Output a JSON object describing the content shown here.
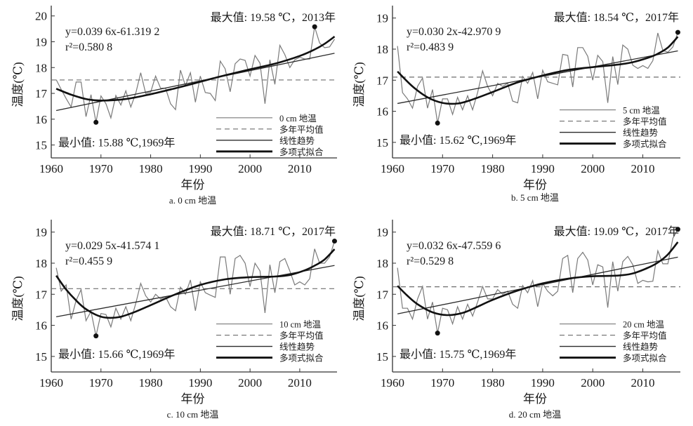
{
  "chart_data": [
    {
      "id": "a",
      "type": "line",
      "caption": "a. 0 cm 地温",
      "xlabel": "年份",
      "ylabel": "温度(℃)",
      "xlim": [
        1960,
        2017.5
      ],
      "ylim": [
        14.5,
        20.4
      ],
      "xticks": [
        1960,
        1970,
        1980,
        1990,
        2000,
        2010
      ],
      "yticks": [
        15,
        16,
        17,
        18,
        19,
        20
      ],
      "grid": false,
      "legend": {
        "position": "bottom-right",
        "entries": [
          "0 cm 地温",
          "多年平均值",
          "线性趋势",
          "多项式拟合"
        ]
      },
      "equation": "y=0.039 6x-61.319 2",
      "r2": "r²=0.580 8",
      "max_label": "最大值: 19.58 ℃，2013年",
      "min_label": "最小值: 15.88 ℃,1969年",
      "max_point": {
        "year": 2013,
        "value": 19.58
      },
      "min_point": {
        "year": 1969,
        "value": 15.88
      },
      "mean": 17.52,
      "linear_trend": {
        "slope": 0.0396,
        "intercept": -61.3192
      },
      "poly_fit": [
        [
          1961,
          17.18
        ],
        [
          1964,
          16.95
        ],
        [
          1967,
          16.78
        ],
        [
          1970,
          16.72
        ],
        [
          1975,
          16.78
        ],
        [
          1980,
          16.97
        ],
        [
          1985,
          17.2
        ],
        [
          1990,
          17.45
        ],
        [
          1995,
          17.7
        ],
        [
          2000,
          17.93
        ],
        [
          2005,
          18.15
        ],
        [
          2010,
          18.45
        ],
        [
          2013,
          18.7
        ],
        [
          2015,
          18.92
        ],
        [
          2017,
          19.2
        ]
      ],
      "series": [
        {
          "name": "0 cm 地温",
          "x": [
            1961,
            1962,
            1963,
            1964,
            1965,
            1966,
            1967,
            1968,
            1969,
            1970,
            1971,
            1972,
            1973,
            1974,
            1975,
            1976,
            1977,
            1978,
            1979,
            1980,
            1981,
            1982,
            1983,
            1984,
            1985,
            1986,
            1987,
            1988,
            1989,
            1990,
            1991,
            1992,
            1993,
            1994,
            1995,
            1996,
            1997,
            1998,
            1999,
            2000,
            2001,
            2002,
            2003,
            2004,
            2005,
            2006,
            2007,
            2008,
            2009,
            2010,
            2011,
            2012,
            2013,
            2014,
            2015,
            2016,
            2017
          ],
          "values": [
            17.53,
            17.15,
            16.8,
            16.47,
            17.44,
            17.44,
            16.1,
            16.95,
            15.88,
            16.9,
            16.6,
            16.05,
            16.92,
            16.55,
            17.1,
            16.47,
            17.0,
            17.8,
            17.0,
            17.05,
            17.67,
            17.2,
            17.2,
            16.6,
            16.37,
            17.9,
            17.3,
            17.8,
            16.66,
            17.67,
            17.03,
            17.0,
            16.72,
            18.25,
            17.95,
            17.06,
            18.15,
            18.33,
            18.28,
            17.67,
            18.47,
            18.17,
            16.6,
            18.3,
            17.35,
            18.86,
            18.5,
            18.0,
            18.3,
            18.4,
            18.33,
            18.33,
            19.58,
            18.95,
            18.77,
            18.8,
            19.1
          ]
        }
      ]
    },
    {
      "id": "b",
      "type": "line",
      "caption": "b. 5 cm 地温",
      "xlabel": "年份",
      "ylabel": "温度(℃)",
      "xlim": [
        1960,
        2017.5
      ],
      "ylim": [
        14.5,
        19.4
      ],
      "xticks": [
        1960,
        1970,
        1980,
        1990,
        2000,
        2010
      ],
      "yticks": [
        15,
        16,
        17,
        18,
        19
      ],
      "grid": false,
      "legend": {
        "position": "bottom-right",
        "entries": [
          "5 cm 地温",
          "多年平均值",
          "线性趋势",
          "多项式拟合"
        ]
      },
      "equation": "y=0.030 2x-42.970 9",
      "r2": "r²=0.483 9",
      "max_label": "最大值: 18.54 ℃，2017年",
      "min_label": "最小值: 15.62 ℃,1969年",
      "max_point": {
        "year": 2017,
        "value": 18.54
      },
      "min_point": {
        "year": 1969,
        "value": 15.62
      },
      "mean": 17.1,
      "linear_trend": {
        "slope": 0.0302,
        "intercept": -42.9709
      },
      "poly_fit": [
        [
          1961,
          17.28
        ],
        [
          1964,
          16.8
        ],
        [
          1967,
          16.45
        ],
        [
          1970,
          16.27
        ],
        [
          1973,
          16.25
        ],
        [
          1976,
          16.38
        ],
        [
          1980,
          16.62
        ],
        [
          1985,
          16.93
        ],
        [
          1990,
          17.15
        ],
        [
          1995,
          17.33
        ],
        [
          2000,
          17.42
        ],
        [
          2005,
          17.5
        ],
        [
          2008,
          17.58
        ],
        [
          2011,
          17.72
        ],
        [
          2013,
          17.85
        ],
        [
          2015,
          18.05
        ],
        [
          2017,
          18.4
        ]
      ],
      "series": [
        {
          "name": "5 cm 地温",
          "x": [
            1961,
            1962,
            1963,
            1964,
            1965,
            1966,
            1967,
            1968,
            1969,
            1970,
            1971,
            1972,
            1973,
            1974,
            1975,
            1976,
            1977,
            1978,
            1979,
            1980,
            1981,
            1982,
            1983,
            1984,
            1985,
            1986,
            1987,
            1988,
            1989,
            1990,
            1991,
            1992,
            1993,
            1994,
            1995,
            1996,
            1997,
            1998,
            1999,
            2000,
            2001,
            2002,
            2003,
            2004,
            2005,
            2006,
            2007,
            2008,
            2009,
            2010,
            2011,
            2012,
            2013,
            2014,
            2015,
            2016,
            2017
          ],
          "values": [
            18.1,
            16.6,
            16.4,
            16.1,
            16.8,
            17.07,
            16.1,
            16.7,
            15.62,
            16.4,
            16.4,
            15.9,
            16.45,
            16.05,
            16.5,
            16.05,
            16.6,
            17.3,
            16.8,
            16.5,
            16.9,
            16.8,
            16.9,
            16.33,
            16.27,
            17.12,
            16.9,
            17.25,
            16.4,
            17.32,
            16.95,
            16.9,
            16.85,
            17.83,
            17.8,
            16.78,
            18.05,
            18.05,
            17.77,
            17.0,
            17.8,
            17.6,
            16.27,
            17.76,
            16.86,
            18.13,
            18.0,
            17.48,
            17.38,
            17.47,
            17.38,
            17.63,
            18.52,
            17.96,
            17.9,
            18.07,
            18.54
          ]
        }
      ]
    },
    {
      "id": "c",
      "type": "line",
      "caption": "c. 10 cm 地温",
      "xlabel": "年份",
      "ylabel": "温度(℃)",
      "xlim": [
        1960,
        2017.5
      ],
      "ylim": [
        14.5,
        19.4
      ],
      "xticks": [
        1960,
        1970,
        1980,
        1990,
        2000,
        2010
      ],
      "yticks": [
        15,
        16,
        17,
        18,
        19
      ],
      "grid": false,
      "legend": {
        "position": "bottom-right",
        "entries": [
          "10 cm 地温",
          "多年平均值",
          "线性趋势",
          "多项式拟合"
        ]
      },
      "equation": "y=0.029 5x-41.574 1",
      "r2": "r²=0.455 9",
      "max_label": "最大值: 18.71 ℃，2017年",
      "min_label": "最小值: 15.66 ℃,1969年",
      "max_point": {
        "year": 2017,
        "value": 18.71
      },
      "min_point": {
        "year": 1969,
        "value": 15.66
      },
      "mean": 17.18,
      "linear_trend": {
        "slope": 0.0295,
        "intercept": -41.5741
      },
      "poly_fit": [
        [
          1961,
          17.6
        ],
        [
          1963,
          17.15
        ],
        [
          1965,
          16.8
        ],
        [
          1967,
          16.52
        ],
        [
          1970,
          16.28
        ],
        [
          1973,
          16.25
        ],
        [
          1976,
          16.38
        ],
        [
          1980,
          16.65
        ],
        [
          1985,
          17.0
        ],
        [
          1990,
          17.3
        ],
        [
          1995,
          17.48
        ],
        [
          2000,
          17.55
        ],
        [
          2005,
          17.57
        ],
        [
          2008,
          17.62
        ],
        [
          2011,
          17.77
        ],
        [
          2013,
          17.92
        ],
        [
          2015,
          18.12
        ],
        [
          2017,
          18.45
        ]
      ],
      "series": [
        {
          "name": "10 cm 地温",
          "x": [
            1961,
            1962,
            1963,
            1964,
            1965,
            1966,
            1967,
            1968,
            1969,
            1970,
            1971,
            1972,
            1973,
            1974,
            1975,
            1976,
            1977,
            1978,
            1979,
            1980,
            1981,
            1982,
            1983,
            1984,
            1985,
            1986,
            1987,
            1988,
            1989,
            1990,
            1991,
            1992,
            1993,
            1994,
            1995,
            1996,
            1997,
            1998,
            1999,
            2000,
            2001,
            2002,
            2003,
            2004,
            2005,
            2006,
            2007,
            2008,
            2009,
            2010,
            2011,
            2012,
            2013,
            2014,
            2015,
            2016,
            2017
          ],
          "values": [
            17.85,
            17.1,
            17.3,
            16.2,
            16.8,
            17.15,
            16.15,
            16.45,
            15.66,
            16.38,
            16.35,
            15.95,
            16.55,
            16.2,
            16.6,
            16.15,
            16.7,
            17.35,
            16.95,
            16.75,
            17.0,
            16.85,
            16.92,
            16.6,
            16.47,
            17.23,
            17.0,
            17.46,
            16.47,
            17.4,
            17.05,
            16.97,
            16.9,
            18.2,
            18.2,
            17.0,
            18.15,
            18.25,
            18.0,
            17.25,
            18.0,
            17.75,
            16.4,
            17.95,
            17.05,
            18.05,
            18.15,
            17.75,
            17.3,
            17.4,
            17.3,
            17.5,
            18.46,
            18.0,
            18.0,
            18.2,
            18.71
          ]
        }
      ]
    },
    {
      "id": "d",
      "type": "line",
      "caption": "d. 20 cm 地温",
      "xlabel": "年份",
      "ylabel": "温度(℃)",
      "xlim": [
        1960,
        2017.5
      ],
      "ylim": [
        14.5,
        19.4
      ],
      "xticks": [
        1960,
        1970,
        1980,
        1990,
        2000,
        2010
      ],
      "yticks": [
        15,
        16,
        17,
        18,
        19
      ],
      "grid": false,
      "legend": {
        "position": "bottom-right",
        "entries": [
          "20 cm 地温",
          "多年平均值",
          "线性趋势",
          "多项式拟合"
        ]
      },
      "equation": "y=0.032 6x-47.559 6",
      "r2": "r²=0.529 8",
      "max_label": "最大值: 19.09 ℃，2017年",
      "min_label": "最小值: 15.75 ℃,1969年",
      "max_point": {
        "year": 2017,
        "value": 19.09
      },
      "min_point": {
        "year": 1969,
        "value": 15.75
      },
      "mean": 17.24,
      "linear_trend": {
        "slope": 0.0326,
        "intercept": -47.5596
      },
      "poly_fit": [
        [
          1961,
          17.27
        ],
        [
          1963,
          16.95
        ],
        [
          1965,
          16.68
        ],
        [
          1968,
          16.42
        ],
        [
          1971,
          16.33
        ],
        [
          1974,
          16.4
        ],
        [
          1977,
          16.6
        ],
        [
          1980,
          16.82
        ],
        [
          1985,
          17.12
        ],
        [
          1990,
          17.35
        ],
        [
          1995,
          17.5
        ],
        [
          2000,
          17.58
        ],
        [
          2005,
          17.6
        ],
        [
          2008,
          17.67
        ],
        [
          2011,
          17.85
        ],
        [
          2013,
          18.02
        ],
        [
          2015,
          18.28
        ],
        [
          2017,
          18.68
        ]
      ],
      "series": [
        {
          "name": "20 cm 地温",
          "x": [
            1961,
            1962,
            1963,
            1964,
            1965,
            1966,
            1967,
            1968,
            1969,
            1970,
            1971,
            1972,
            1973,
            1974,
            1975,
            1976,
            1977,
            1978,
            1979,
            1980,
            1981,
            1982,
            1983,
            1984,
            1985,
            1986,
            1987,
            1988,
            1989,
            1990,
            1991,
            1992,
            1993,
            1994,
            1995,
            1996,
            1997,
            1998,
            1999,
            2000,
            2001,
            2002,
            2003,
            2004,
            2005,
            2006,
            2007,
            2008,
            2009,
            2010,
            2011,
            2012,
            2013,
            2014,
            2015,
            2016,
            2017
          ],
          "values": [
            17.85,
            16.55,
            16.55,
            16.2,
            16.85,
            17.25,
            16.2,
            16.75,
            15.75,
            16.55,
            16.5,
            16.05,
            16.6,
            16.2,
            16.68,
            16.3,
            16.75,
            17.25,
            16.85,
            16.85,
            17.15,
            17.0,
            17.1,
            16.68,
            16.55,
            17.28,
            17.05,
            17.44,
            16.6,
            17.35,
            17.1,
            16.95,
            17.1,
            18.15,
            18.25,
            17.05,
            18.15,
            18.35,
            18.1,
            17.3,
            17.95,
            17.88,
            16.57,
            18.05,
            17.1,
            18.05,
            18.22,
            17.95,
            17.35,
            17.45,
            17.4,
            17.42,
            18.4,
            17.98,
            17.98,
            18.8,
            19.09
          ]
        }
      ]
    }
  ],
  "colors": {
    "series_line": "#7a7a7a",
    "mean_line": "#6e6e6e",
    "linear_line": "#2b2b2b",
    "poly_line": "#111111",
    "axis": "#333333",
    "marker": "#111111"
  }
}
